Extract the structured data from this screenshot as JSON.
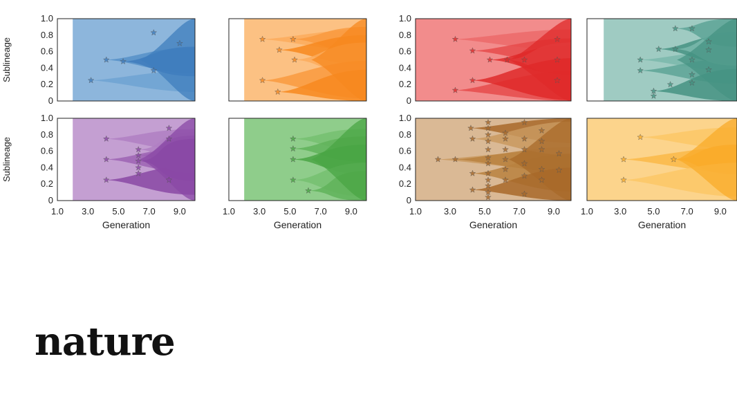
{
  "brand": {
    "logo_text": "nature"
  },
  "chart_data": {
    "type": "area",
    "description_type": "stacked sublineage frequency (Muller-style) plots",
    "shared": {
      "ylabel": "Sublineage",
      "xlabel": "Generation",
      "ylim": [
        0,
        1.0
      ],
      "xlim": [
        1.0,
        10.0
      ],
      "yticks": [
        "0",
        "0.2",
        "0.4",
        "0.6",
        "0.8",
        "1.0"
      ],
      "xticks": [
        "1.0",
        "3.0",
        "5.0",
        "7.0",
        "9.0"
      ]
    },
    "panels": [
      {
        "id": "blue",
        "start": 2,
        "base": "#8db6dc",
        "colors": [
          "#6fa3d2",
          "#5690c8",
          "#3f7dbd"
        ],
        "stars": [
          [
            3.2,
            0.25
          ],
          [
            4.2,
            0.5
          ],
          [
            5.3,
            0.48
          ],
          [
            7.3,
            0.37
          ],
          [
            7.3,
            0.83
          ],
          [
            9.0,
            0.7
          ]
        ]
      },
      {
        "id": "orange",
        "start": 2,
        "base": "#fcc183",
        "colors": [
          "#fbab5d",
          "#f99a3f",
          "#f7881f"
        ],
        "stars": [
          [
            3.2,
            0.75
          ],
          [
            5.2,
            0.75
          ],
          [
            4.3,
            0.62
          ],
          [
            5.3,
            0.5
          ],
          [
            3.2,
            0.25
          ],
          [
            4.2,
            0.11
          ]
        ]
      },
      {
        "id": "red",
        "start": 1,
        "base": "#f28c8c",
        "colors": [
          "#ec6a6a",
          "#e64b4b",
          "#df2a2a"
        ],
        "stars": [
          [
            3.3,
            0.75
          ],
          [
            4.3,
            0.61
          ],
          [
            5.3,
            0.5
          ],
          [
            6.3,
            0.5
          ],
          [
            7.3,
            0.5
          ],
          [
            3.3,
            0.13
          ],
          [
            4.3,
            0.25
          ],
          [
            9.2,
            0.75
          ],
          [
            9.2,
            0.5
          ],
          [
            9.2,
            0.25
          ]
        ]
      },
      {
        "id": "teal",
        "start": 2,
        "base": "#9fcbc2",
        "colors": [
          "#7ab8ac",
          "#5da597",
          "#459383"
        ],
        "stars": [
          [
            4.2,
            0.5
          ],
          [
            4.2,
            0.37
          ],
          [
            5.3,
            0.63
          ],
          [
            6.3,
            0.63
          ],
          [
            6.3,
            0.88
          ],
          [
            7.3,
            0.88
          ],
          [
            5.0,
            0.12
          ],
          [
            5.0,
            0.06
          ],
          [
            6.0,
            0.2
          ],
          [
            7.3,
            0.5
          ],
          [
            8.3,
            0.72
          ],
          [
            8.3,
            0.62
          ],
          [
            8.3,
            0.38
          ],
          [
            7.3,
            0.32
          ],
          [
            7.3,
            0.22
          ]
        ]
      },
      {
        "id": "purple",
        "start": 2,
        "base": "#c49fd2",
        "colors": [
          "#b07fc3",
          "#9d63b4",
          "#8a48a5"
        ],
        "stars": [
          [
            4.2,
            0.75
          ],
          [
            4.2,
            0.5
          ],
          [
            4.2,
            0.25
          ],
          [
            6.3,
            0.62
          ],
          [
            6.3,
            0.55
          ],
          [
            6.3,
            0.48
          ],
          [
            6.3,
            0.4
          ],
          [
            6.3,
            0.33
          ],
          [
            8.3,
            0.88
          ],
          [
            8.3,
            0.75
          ],
          [
            8.3,
            0.25
          ]
        ]
      },
      {
        "id": "green",
        "start": 2,
        "base": "#8fcd8b",
        "colors": [
          "#76c070",
          "#60b35a",
          "#4aa544"
        ],
        "stars": [
          [
            5.2,
            0.75
          ],
          [
            5.2,
            0.63
          ],
          [
            5.2,
            0.5
          ],
          [
            5.2,
            0.25
          ],
          [
            6.2,
            0.12
          ]
        ]
      },
      {
        "id": "brown",
        "start": 1,
        "base": "#dab995",
        "colors": [
          "#c9995f",
          "#b9813f",
          "#a8692a"
        ],
        "stars": [
          [
            2.3,
            0.5
          ],
          [
            3.3,
            0.5
          ],
          [
            4.2,
            0.88
          ],
          [
            4.3,
            0.75
          ],
          [
            4.3,
            0.33
          ],
          [
            4.3,
            0.13
          ],
          [
            5.2,
            0.95
          ],
          [
            5.2,
            0.88
          ],
          [
            5.2,
            0.8
          ],
          [
            5.2,
            0.72
          ],
          [
            5.2,
            0.62
          ],
          [
            5.2,
            0.52
          ],
          [
            5.2,
            0.45
          ],
          [
            5.2,
            0.33
          ],
          [
            5.2,
            0.25
          ],
          [
            5.2,
            0.18
          ],
          [
            5.2,
            0.1
          ],
          [
            5.2,
            0.04
          ],
          [
            6.2,
            0.82
          ],
          [
            6.2,
            0.75
          ],
          [
            6.2,
            0.62
          ],
          [
            6.2,
            0.5
          ],
          [
            6.2,
            0.38
          ],
          [
            6.2,
            0.25
          ],
          [
            7.3,
            0.95
          ],
          [
            7.3,
            0.75
          ],
          [
            7.3,
            0.62
          ],
          [
            7.3,
            0.45
          ],
          [
            7.3,
            0.3
          ],
          [
            7.3,
            0.08
          ],
          [
            8.3,
            0.85
          ],
          [
            8.3,
            0.72
          ],
          [
            8.3,
            0.62
          ],
          [
            8.3,
            0.38
          ],
          [
            8.3,
            0.25
          ],
          [
            9.3,
            0.57
          ],
          [
            9.3,
            0.37
          ]
        ]
      },
      {
        "id": "yellow",
        "start": 1,
        "base": "#fcd48c",
        "colors": [
          "#fbc766",
          "#fab948",
          "#f9ab2a"
        ],
        "stars": [
          [
            4.2,
            0.77
          ],
          [
            3.2,
            0.5
          ],
          [
            6.2,
            0.5
          ],
          [
            3.2,
            0.25
          ]
        ]
      }
    ]
  }
}
